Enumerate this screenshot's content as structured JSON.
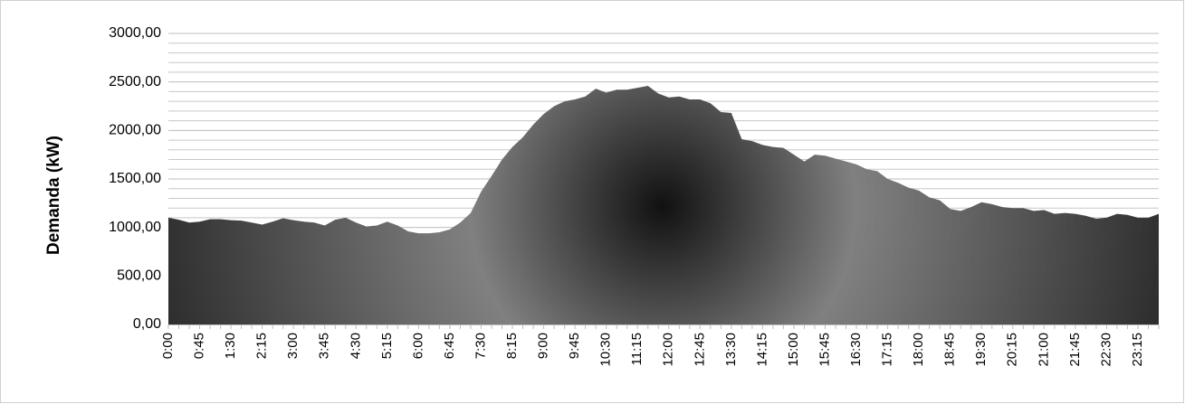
{
  "chart_data": {
    "type": "area",
    "y_label": "Demanda (kW)",
    "color": "#111111",
    "ylim": [
      0,
      3000
    ],
    "yticks": [
      {
        "value": 0,
        "label": "0,00"
      },
      {
        "value": 500,
        "label": "500,00"
      },
      {
        "value": 1000,
        "label": "1000,00"
      },
      {
        "value": 1500,
        "label": "1500,00"
      },
      {
        "value": 2000,
        "label": "2000,00"
      },
      {
        "value": 2500,
        "label": "2500,00"
      },
      {
        "value": 3000,
        "label": "3000,00"
      }
    ],
    "minor_gridlines": [
      100,
      200,
      300,
      400,
      600,
      700,
      800,
      900,
      1100,
      1200,
      1300,
      1400,
      1600,
      1700,
      1800,
      1900,
      2100,
      2200,
      2300,
      2400,
      2600,
      2700,
      2800,
      2900
    ],
    "grid": true,
    "categories": [
      "0:00",
      null,
      null,
      "0:45",
      null,
      null,
      "1:30",
      null,
      null,
      "2:15",
      null,
      null,
      "3:00",
      null,
      null,
      "3:45",
      null,
      null,
      "4:30",
      null,
      null,
      "5:15",
      null,
      null,
      "6:00",
      null,
      null,
      "6:45",
      null,
      null,
      "7:30",
      null,
      null,
      "8:15",
      null,
      null,
      "9:00",
      null,
      null,
      "9:45",
      null,
      null,
      "10:30",
      null,
      null,
      "11:15",
      null,
      null,
      "12:00",
      null,
      null,
      "12:45",
      null,
      null,
      "13:30",
      null,
      null,
      "14:15",
      null,
      null,
      "15:00",
      null,
      null,
      "15:45",
      null,
      null,
      "16:30",
      null,
      null,
      "17:15",
      null,
      null,
      "18:00",
      null,
      null,
      "18:45",
      null,
      null,
      "19:30",
      null,
      null,
      "20:15",
      null,
      null,
      "21:00",
      null,
      null,
      "21:45",
      null,
      null,
      "22:30",
      null,
      null,
      "23:15",
      null,
      null
    ],
    "values": [
      1100,
      1080,
      1050,
      1060,
      1085,
      1085,
      1075,
      1070,
      1050,
      1030,
      1060,
      1095,
      1075,
      1060,
      1050,
      1020,
      1080,
      1100,
      1050,
      1010,
      1020,
      1060,
      1020,
      960,
      940,
      940,
      950,
      980,
      1050,
      1150,
      1370,
      1530,
      1700,
      1830,
      1930,
      2060,
      2170,
      2250,
      2300,
      2320,
      2350,
      2430,
      2390,
      2420,
      2420,
      2440,
      2460,
      2380,
      2340,
      2350,
      2320,
      2320,
      2280,
      2190,
      2180,
      1910,
      1890,
      1850,
      1830,
      1820,
      1750,
      1680,
      1750,
      1740,
      1710,
      1680,
      1650,
      1600,
      1580,
      1500,
      1460,
      1410,
      1380,
      1310,
      1280,
      1190,
      1170,
      1210,
      1260,
      1240,
      1210,
      1200,
      1200,
      1170,
      1180,
      1140,
      1150,
      1140,
      1120,
      1090,
      1100,
      1140,
      1130,
      1100,
      1100,
      1140
    ]
  }
}
